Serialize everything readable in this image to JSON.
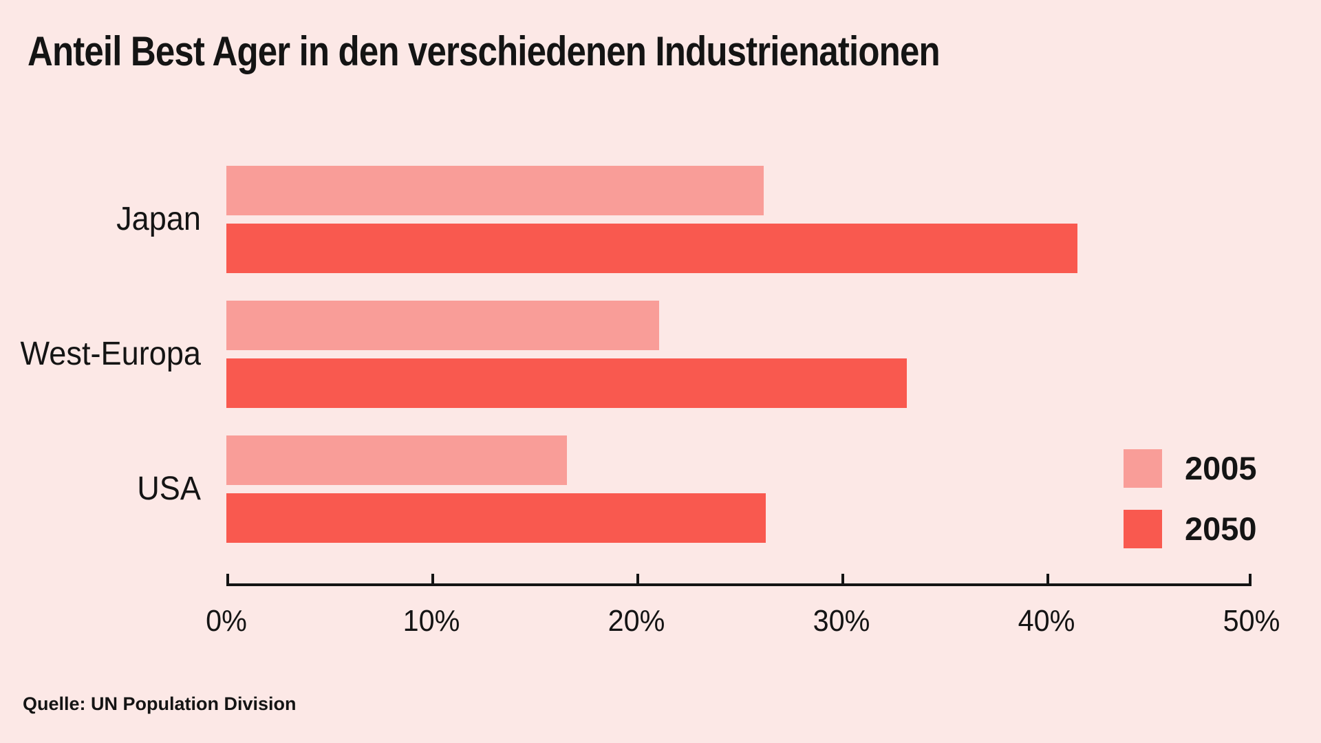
{
  "title": "Anteil Best Ager in den verschiedenen Industrienationen",
  "source": "Quelle: UN Population Division",
  "colors": {
    "background": "#fce8e6",
    "bar_2005": "#f99d98",
    "bar_2050": "#f9594f",
    "text": "#141414",
    "axis": "#141414"
  },
  "legend": {
    "items": [
      {
        "label": "2005",
        "color": "#f99d98"
      },
      {
        "label": "2050",
        "color": "#f9594f"
      }
    ]
  },
  "chart_data": {
    "type": "bar",
    "orientation": "horizontal",
    "title": "Anteil Best Ager in den verschiedenen Industrienationen",
    "categories": [
      "Japan",
      "West-Europa",
      "USA"
    ],
    "series": [
      {
        "name": "2005",
        "color": "#f99d98",
        "values": [
          26.2,
          21.1,
          16.6
        ]
      },
      {
        "name": "2050",
        "color": "#f9594f",
        "values": [
          41.5,
          33.2,
          26.3
        ]
      }
    ],
    "xlabel": "",
    "ylabel": "",
    "xlim": [
      0,
      50
    ],
    "x_tick_values": [
      0,
      10,
      20,
      30,
      40,
      50
    ],
    "x_tick_labels": [
      "0%",
      "10%",
      "20%",
      "30%",
      "40%",
      "50%"
    ],
    "grid": false,
    "legend_position": "center-right",
    "source": "Quelle: UN Population Division"
  }
}
